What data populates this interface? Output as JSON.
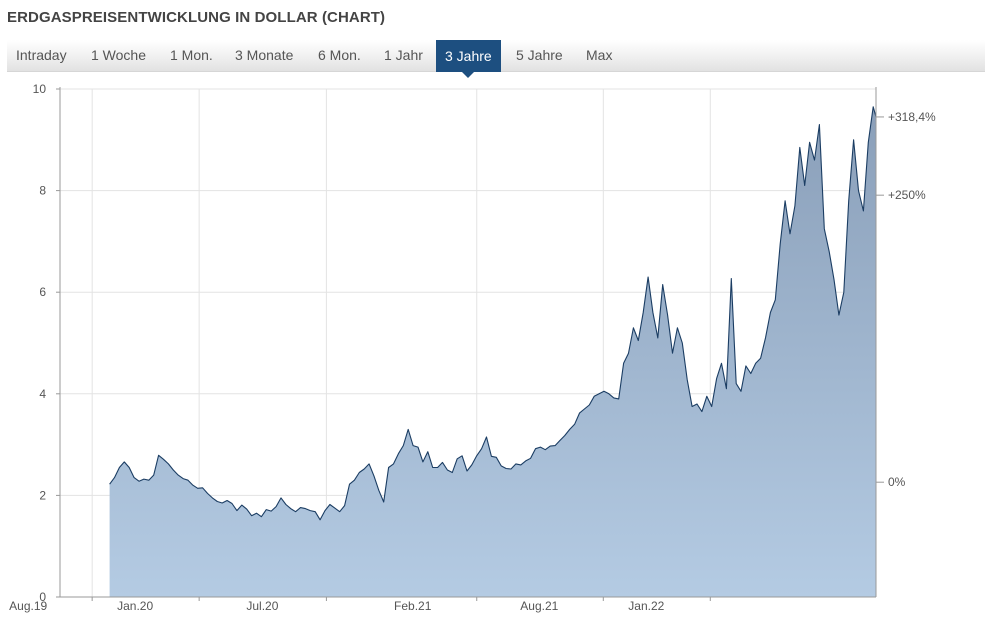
{
  "header": {
    "title": "ERDGASPREISENTWICKLUNG IN DOLLAR (CHART)"
  },
  "tabs": [
    {
      "label": "Intraday",
      "active": false
    },
    {
      "label": "1 Woche",
      "active": false
    },
    {
      "label": "1 Mon.",
      "active": false
    },
    {
      "label": "3 Monate",
      "active": false
    },
    {
      "label": "6 Mon.",
      "active": false
    },
    {
      "label": "1 Jahr",
      "active": false
    },
    {
      "label": "3 Jahre",
      "active": true
    },
    {
      "label": "5 Jahre",
      "active": false
    },
    {
      "label": "Max",
      "active": false
    }
  ],
  "colors": {
    "accent": "#1d4f80",
    "area_fill_top": "#8a9fb9",
    "area_fill_bottom": "#b4cbe3",
    "line": "#1b3d63",
    "positive": "#2a8a22"
  },
  "chart_data": {
    "type": "area",
    "title": "",
    "xlabel": "",
    "ylabel": "",
    "ylim": [
      0,
      10
    ],
    "yticks": [
      "0",
      "2",
      "4",
      "6",
      "8",
      "10"
    ],
    "xticks": [
      "Aug.19",
      "Jan.20",
      "Jul.20",
      "Feb.21",
      "Aug.21",
      "Jan.22"
    ],
    "xrange": [
      "2019-06-16",
      "2022-08-26"
    ],
    "right_axis": [
      {
        "label": "0%",
        "value": 2.26
      },
      {
        "label": "+250%",
        "value": 7.91
      },
      {
        "label": "+318,4%",
        "value": 9.45,
        "highlight": true
      }
    ],
    "grid": true,
    "series": [
      {
        "values": [
          [
            "2019-08-26",
            2.22
          ],
          [
            "2019-09-02",
            2.35
          ],
          [
            "2019-09-09",
            2.55
          ],
          [
            "2019-09-16",
            2.66
          ],
          [
            "2019-09-23",
            2.55
          ],
          [
            "2019-09-30",
            2.35
          ],
          [
            "2019-10-07",
            2.28
          ],
          [
            "2019-10-14",
            2.32
          ],
          [
            "2019-10-21",
            2.3
          ],
          [
            "2019-10-28",
            2.4
          ],
          [
            "2019-11-04",
            2.79
          ],
          [
            "2019-11-11",
            2.71
          ],
          [
            "2019-11-18",
            2.62
          ],
          [
            "2019-11-25",
            2.5
          ],
          [
            "2019-12-02",
            2.4
          ],
          [
            "2019-12-09",
            2.33
          ],
          [
            "2019-12-16",
            2.3
          ],
          [
            "2019-12-23",
            2.2
          ],
          [
            "2019-12-30",
            2.14
          ],
          [
            "2020-01-06",
            2.15
          ],
          [
            "2020-01-13",
            2.04
          ],
          [
            "2020-01-20",
            1.95
          ],
          [
            "2020-01-27",
            1.88
          ],
          [
            "2020-02-03",
            1.85
          ],
          [
            "2020-02-10",
            1.9
          ],
          [
            "2020-02-17",
            1.84
          ],
          [
            "2020-02-24",
            1.7
          ],
          [
            "2020-03-02",
            1.81
          ],
          [
            "2020-03-09",
            1.73
          ],
          [
            "2020-03-16",
            1.6
          ],
          [
            "2020-03-23",
            1.65
          ],
          [
            "2020-03-30",
            1.58
          ],
          [
            "2020-04-06",
            1.72
          ],
          [
            "2020-04-13",
            1.69
          ],
          [
            "2020-04-20",
            1.78
          ],
          [
            "2020-04-27",
            1.95
          ],
          [
            "2020-05-04",
            1.82
          ],
          [
            "2020-05-11",
            1.74
          ],
          [
            "2020-05-18",
            1.68
          ],
          [
            "2020-05-25",
            1.76
          ],
          [
            "2020-06-01",
            1.74
          ],
          [
            "2020-06-08",
            1.7
          ],
          [
            "2020-06-15",
            1.68
          ],
          [
            "2020-06-22",
            1.52
          ],
          [
            "2020-06-29",
            1.7
          ],
          [
            "2020-07-06",
            1.82
          ],
          [
            "2020-07-13",
            1.75
          ],
          [
            "2020-07-20",
            1.68
          ],
          [
            "2020-07-27",
            1.8
          ],
          [
            "2020-08-03",
            2.22
          ],
          [
            "2020-08-10",
            2.3
          ],
          [
            "2020-08-17",
            2.45
          ],
          [
            "2020-08-24",
            2.52
          ],
          [
            "2020-08-31",
            2.62
          ],
          [
            "2020-09-07",
            2.38
          ],
          [
            "2020-09-14",
            2.1
          ],
          [
            "2020-09-21",
            1.87
          ],
          [
            "2020-09-28",
            2.55
          ],
          [
            "2020-10-05",
            2.62
          ],
          [
            "2020-10-12",
            2.82
          ],
          [
            "2020-10-19",
            2.98
          ],
          [
            "2020-10-26",
            3.3
          ],
          [
            "2020-11-02",
            2.98
          ],
          [
            "2020-11-09",
            2.95
          ],
          [
            "2020-11-16",
            2.66
          ],
          [
            "2020-11-23",
            2.86
          ],
          [
            "2020-11-30",
            2.55
          ],
          [
            "2020-12-07",
            2.55
          ],
          [
            "2020-12-14",
            2.65
          ],
          [
            "2020-12-21",
            2.5
          ],
          [
            "2020-12-28",
            2.45
          ],
          [
            "2021-01-04",
            2.72
          ],
          [
            "2021-01-11",
            2.78
          ],
          [
            "2021-01-18",
            2.48
          ],
          [
            "2021-01-25",
            2.6
          ],
          [
            "2021-02-01",
            2.78
          ],
          [
            "2021-02-08",
            2.92
          ],
          [
            "2021-02-15",
            3.15
          ],
          [
            "2021-02-22",
            2.77
          ],
          [
            "2021-03-01",
            2.75
          ],
          [
            "2021-03-08",
            2.58
          ],
          [
            "2021-03-15",
            2.53
          ],
          [
            "2021-03-22",
            2.52
          ],
          [
            "2021-03-29",
            2.62
          ],
          [
            "2021-04-05",
            2.6
          ],
          [
            "2021-04-12",
            2.68
          ],
          [
            "2021-04-19",
            2.73
          ],
          [
            "2021-04-26",
            2.92
          ],
          [
            "2021-05-03",
            2.95
          ],
          [
            "2021-05-10",
            2.9
          ],
          [
            "2021-05-17",
            2.97
          ],
          [
            "2021-05-24",
            2.98
          ],
          [
            "2021-05-31",
            3.08
          ],
          [
            "2021-06-07",
            3.18
          ],
          [
            "2021-06-14",
            3.3
          ],
          [
            "2021-06-21",
            3.4
          ],
          [
            "2021-06-28",
            3.62
          ],
          [
            "2021-07-05",
            3.7
          ],
          [
            "2021-07-12",
            3.78
          ],
          [
            "2021-07-19",
            3.95
          ],
          [
            "2021-07-26",
            4.0
          ],
          [
            "2021-08-02",
            4.05
          ],
          [
            "2021-08-09",
            4.0
          ],
          [
            "2021-08-16",
            3.92
          ],
          [
            "2021-08-23",
            3.9
          ],
          [
            "2021-08-30",
            4.6
          ],
          [
            "2021-09-06",
            4.8
          ],
          [
            "2021-09-13",
            5.3
          ],
          [
            "2021-09-20",
            5.05
          ],
          [
            "2021-09-27",
            5.6
          ],
          [
            "2021-10-04",
            6.3
          ],
          [
            "2021-10-11",
            5.6
          ],
          [
            "2021-10-18",
            5.1
          ],
          [
            "2021-10-25",
            6.15
          ],
          [
            "2021-11-01",
            5.55
          ],
          [
            "2021-11-08",
            4.8
          ],
          [
            "2021-11-15",
            5.3
          ],
          [
            "2021-11-22",
            5.0
          ],
          [
            "2021-11-29",
            4.28
          ],
          [
            "2021-12-06",
            3.75
          ],
          [
            "2021-12-13",
            3.8
          ],
          [
            "2021-12-20",
            3.65
          ],
          [
            "2021-12-27",
            3.95
          ],
          [
            "2022-01-03",
            3.75
          ],
          [
            "2022-01-10",
            4.3
          ],
          [
            "2022-01-17",
            4.6
          ],
          [
            "2022-01-24",
            4.1
          ],
          [
            "2022-01-31",
            6.27
          ],
          [
            "2022-02-07",
            4.2
          ],
          [
            "2022-02-14",
            4.05
          ],
          [
            "2022-02-21",
            4.55
          ],
          [
            "2022-02-28",
            4.4
          ],
          [
            "2022-03-07",
            4.6
          ],
          [
            "2022-03-14",
            4.7
          ],
          [
            "2022-03-21",
            5.1
          ],
          [
            "2022-03-28",
            5.6
          ],
          [
            "2022-04-04",
            5.85
          ],
          [
            "2022-04-11",
            6.95
          ],
          [
            "2022-04-18",
            7.8
          ],
          [
            "2022-04-25",
            7.15
          ],
          [
            "2022-05-02",
            7.7
          ],
          [
            "2022-05-09",
            8.85
          ],
          [
            "2022-05-16",
            8.1
          ],
          [
            "2022-05-23",
            8.95
          ],
          [
            "2022-05-30",
            8.6
          ],
          [
            "2022-06-06",
            9.3
          ],
          [
            "2022-06-13",
            7.25
          ],
          [
            "2022-06-20",
            6.8
          ],
          [
            "2022-06-27",
            6.25
          ],
          [
            "2022-07-04",
            5.55
          ],
          [
            "2022-07-11",
            6.0
          ],
          [
            "2022-07-18",
            7.8
          ],
          [
            "2022-07-25",
            9.0
          ],
          [
            "2022-08-01",
            8.0
          ],
          [
            "2022-08-08",
            7.6
          ],
          [
            "2022-08-15",
            8.95
          ],
          [
            "2022-08-22",
            9.65
          ],
          [
            "2022-08-26",
            9.45
          ]
        ]
      }
    ]
  }
}
